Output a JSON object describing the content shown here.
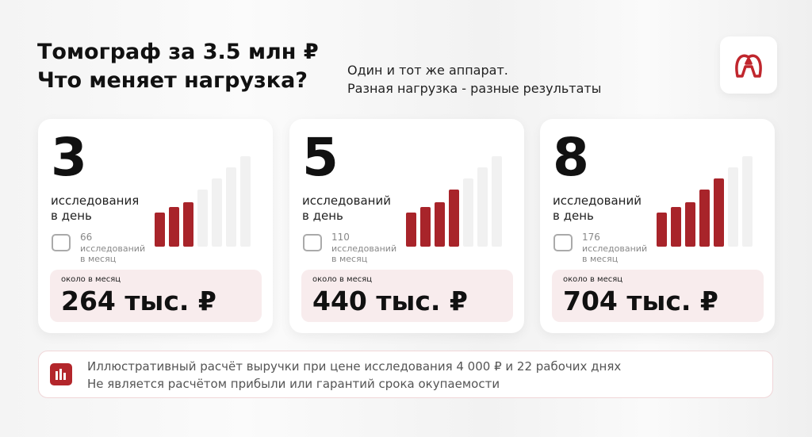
{
  "header": {
    "title_lines": [
      "Томограф за 3.5 млн ₽",
      "Что меняет нагрузка?"
    ],
    "subtitle_lines": [
      "Один и тот же аппарат.",
      "Разная нагрузка - разные результаты"
    ]
  },
  "cards": [
    {
      "per_day": 3,
      "per_day_label": [
        "исследования",
        "в день"
      ],
      "per_month": 66,
      "per_month_label": [
        "исследований",
        "в месяц"
      ],
      "revenue_caption": "около в месяц",
      "revenue": "264 тыс. ₽"
    },
    {
      "per_day": 5,
      "per_day_label": [
        "исследований",
        "в день"
      ],
      "per_month": 110,
      "per_month_label": [
        "исследований",
        "в месяц"
      ],
      "revenue_caption": "около в месяц",
      "revenue": "440 тыс. ₽"
    },
    {
      "per_day": 8,
      "per_day_label": [
        "исследований",
        "в день"
      ],
      "per_month": 176,
      "per_month_label": [
        "исследований",
        "в месяц"
      ],
      "revenue_caption": "около в месяц",
      "revenue": "704 тыс. ₽"
    }
  ],
  "footer": {
    "lines": [
      "Иллюстративный расчёт выручки при цене исследования 4 000 ₽ и 22 рабочих днях",
      "Не является расчётом прибыли или гарантий срока окупаемости"
    ]
  }
}
